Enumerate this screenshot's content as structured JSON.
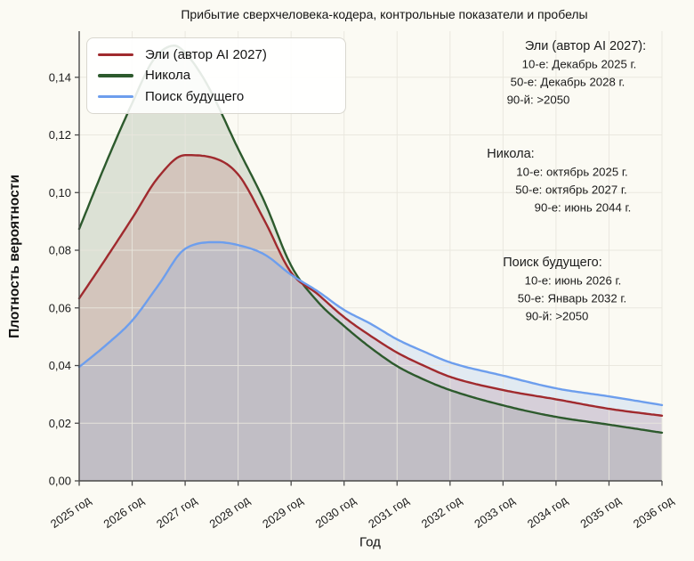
{
  "title": "Прибытие сверхчеловека-кодера, контрольные показатели и пробелы",
  "axes": {
    "x_label": "Год",
    "y_label": "Плотность вероятности",
    "x_ticks": [
      "2025 год",
      "2026 год",
      "2027 год",
      "2028 год",
      "2029 год",
      "2030 год",
      "2031 год",
      "2032 год",
      "2033 год",
      "2034 год",
      "2035 год",
      "2036 год"
    ],
    "y_ticks": [
      "0,00",
      "0,02",
      "0,04",
      "0,06",
      "0,08",
      "0,10",
      "0,12",
      "0,14"
    ]
  },
  "legend": {
    "items": [
      {
        "label": "Эли (автор AI 2027)",
        "color": "#a02a2e"
      },
      {
        "label": "Никола",
        "color": "#2d5a2d"
      },
      {
        "label": "Поиск будущего",
        "color": "#6d9eed"
      }
    ]
  },
  "annotations": [
    {
      "title": "Эли (автор AI 2027):",
      "lines": [
        "10-е: Декабрь 2025 г.",
        "50-е: Декабрь 2028 г.",
        "90-й: >2050"
      ]
    },
    {
      "title": "Никола:",
      "lines": [
        "10-е: октябрь 2025 г.",
        "50-е: октябрь 2027 г.",
        "90-е: июнь 2044 г."
      ]
    },
    {
      "title": "Поиск будущего:",
      "lines": [
        "10-е: июнь 2026 г.",
        "50-е: Январь 2032 г.",
        "90-й: >2050"
      ]
    }
  ],
  "colors": {
    "background": "#fbfaf3",
    "grid": "#e8e6dd",
    "spine": "#4a4a4a",
    "tick_text": "#1c1c1c"
  },
  "chart_data": {
    "type": "area",
    "title": "Прибытие сверхчеловека-кодера, контрольные показатели и пробелы",
    "xlabel": "Год",
    "ylabel": "Плотность вероятности",
    "xlim": [
      2025,
      2036
    ],
    "ylim": [
      0,
      0.156
    ],
    "grid": true,
    "legend_position": "upper left",
    "x_tick_years": [
      2025,
      2026,
      2027,
      2028,
      2029,
      2030,
      2031,
      2032,
      2033,
      2034,
      2035,
      2036
    ],
    "y_tick_values": [
      0,
      0.02,
      0.04,
      0.06,
      0.08,
      0.1,
      0.12,
      0.14
    ],
    "series": [
      {
        "name": "Эли (автор AI 2027)",
        "key": "eli",
        "color": "#a02a2e",
        "fill_alpha": 0.15,
        "peak": {
          "x": 2027.0,
          "y": 0.113
        },
        "x": [
          2025,
          2025.5,
          2026,
          2026.5,
          2027,
          2027.5,
          2028,
          2028.5,
          2029,
          2029.5,
          2030,
          2030.5,
          2031,
          2031.5,
          2032,
          2033,
          2034,
          2035,
          2036
        ],
        "y": [
          0.0633,
          0.077,
          0.0911,
          0.1055,
          0.113,
          0.1122,
          0.1063,
          0.0902,
          0.0723,
          0.0648,
          0.0568,
          0.0503,
          0.0445,
          0.04,
          0.0361,
          0.0315,
          0.0283,
          0.025,
          0.0226
        ]
      },
      {
        "name": "Никола",
        "key": "nikola",
        "color": "#2d5a2d",
        "fill_alpha": 0.15,
        "peak": {
          "x": 2026.8,
          "y": 0.151
        },
        "x": [
          2025,
          2025.5,
          2026,
          2026.4,
          2026.8,
          2027,
          2027.4,
          2028,
          2028.5,
          2029,
          2029.5,
          2030,
          2030.5,
          2031,
          2031.5,
          2032,
          2033,
          2034,
          2035,
          2036
        ],
        "y": [
          0.0874,
          0.11,
          0.131,
          0.146,
          0.151,
          0.1485,
          0.138,
          0.1152,
          0.0967,
          0.0747,
          0.0622,
          0.0537,
          0.0462,
          0.0398,
          0.0352,
          0.0315,
          0.0262,
          0.0222,
          0.0195,
          0.0167
        ]
      },
      {
        "name": "Поиск будущего",
        "key": "future-search",
        "color": "#6d9eed",
        "fill_alpha": 0.18,
        "peak": {
          "x": 2027.6,
          "y": 0.0828
        },
        "x": [
          2025,
          2025.5,
          2026,
          2026.5,
          2027,
          2027.6,
          2028,
          2028.5,
          2029,
          2029.5,
          2030,
          2030.5,
          2031,
          2031.5,
          2032,
          2033,
          2034,
          2035,
          2036
        ],
        "y": [
          0.0395,
          0.047,
          0.0556,
          0.068,
          0.0805,
          0.0828,
          0.0818,
          0.0785,
          0.0715,
          0.0658,
          0.0593,
          0.0545,
          0.0491,
          0.0449,
          0.0411,
          0.0365,
          0.0321,
          0.0293,
          0.0263
        ]
      }
    ]
  }
}
